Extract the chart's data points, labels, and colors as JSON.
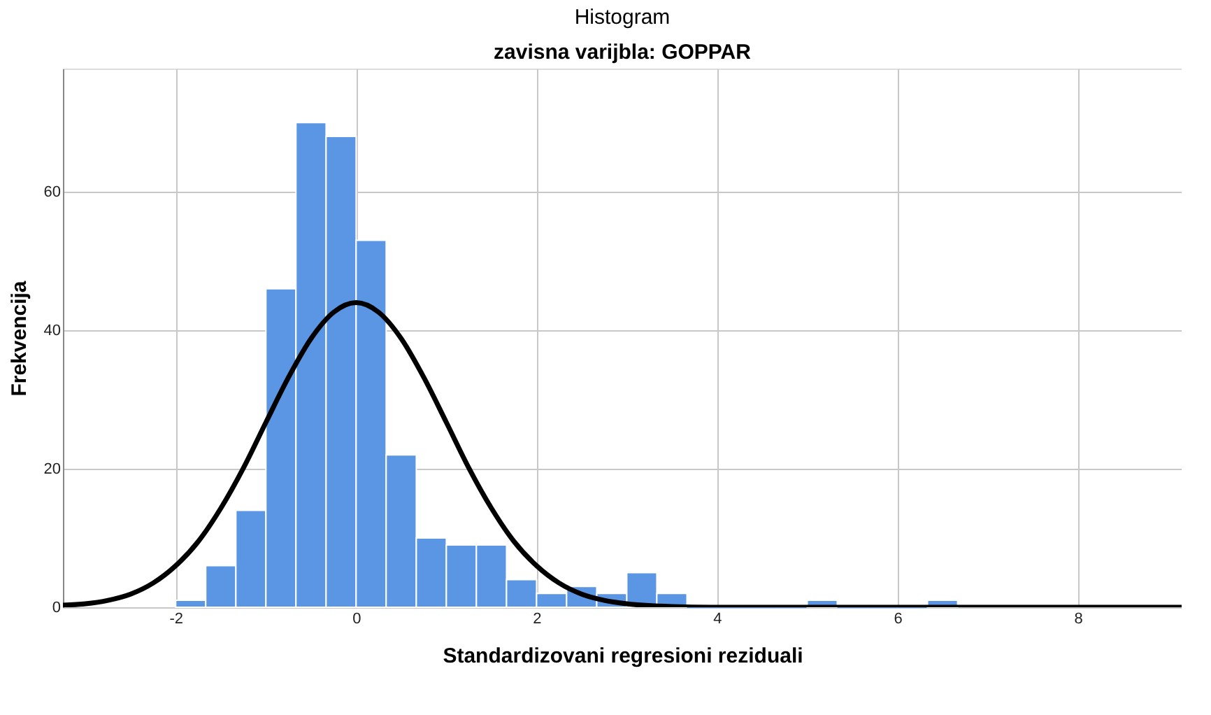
{
  "chart_data": {
    "type": "histogram",
    "title": "Histogram",
    "subtitle": "zavisna varijbla: GOPPAR",
    "xlabel": "Standardizovani regresioni reziduali",
    "ylabel": "Frekvencija",
    "bins": [
      -2,
      -1.667,
      -1.333,
      -1,
      -0.667,
      -0.333,
      0,
      0.333,
      0.667,
      1,
      1.333,
      1.667,
      2,
      2.333,
      2.667,
      3,
      3.333,
      3.667,
      4,
      4.333,
      4.667,
      5,
      5.333,
      5.667,
      6,
      6.333,
      6.667
    ],
    "values": [
      1,
      6,
      14,
      46,
      70,
      68,
      53,
      22,
      10,
      9,
      9,
      4,
      2,
      3,
      2,
      5,
      2,
      0,
      0,
      0,
      0,
      1,
      0,
      0,
      0,
      1
    ],
    "color": "#5a96e3",
    "series": [
      {
        "type": "line",
        "color": "#000000",
        "x": [
          -3.25,
          -3,
          -2.75,
          -2.5,
          -2.25,
          -2,
          -1.75,
          -1.5,
          -1.25,
          -1,
          -0.75,
          -0.5,
          -0.25,
          0,
          0.25,
          0.5,
          0.75,
          1,
          1.25,
          1.5,
          1.75,
          2,
          2.25,
          2.5,
          2.75,
          3,
          3.5,
          4,
          9.15
        ],
        "values": [
          0.3,
          0.5,
          1.0,
          1.9,
          3.5,
          6.0,
          9.5,
          14.3,
          20.1,
          26.7,
          33.2,
          38.8,
          42.6,
          44,
          42.6,
          38.8,
          33.2,
          26.7,
          20.1,
          14.3,
          9.5,
          6.0,
          3.5,
          1.9,
          1.0,
          0.5,
          0.1,
          0,
          0
        ]
      }
    ],
    "xlim": [
      -3.25,
      9.15
    ],
    "xticks": [
      -2,
      0,
      2,
      4,
      6,
      8
    ],
    "ylim": [
      0,
      77.8
    ],
    "yticks": [
      0,
      20,
      40,
      60
    ],
    "grid": true
  }
}
